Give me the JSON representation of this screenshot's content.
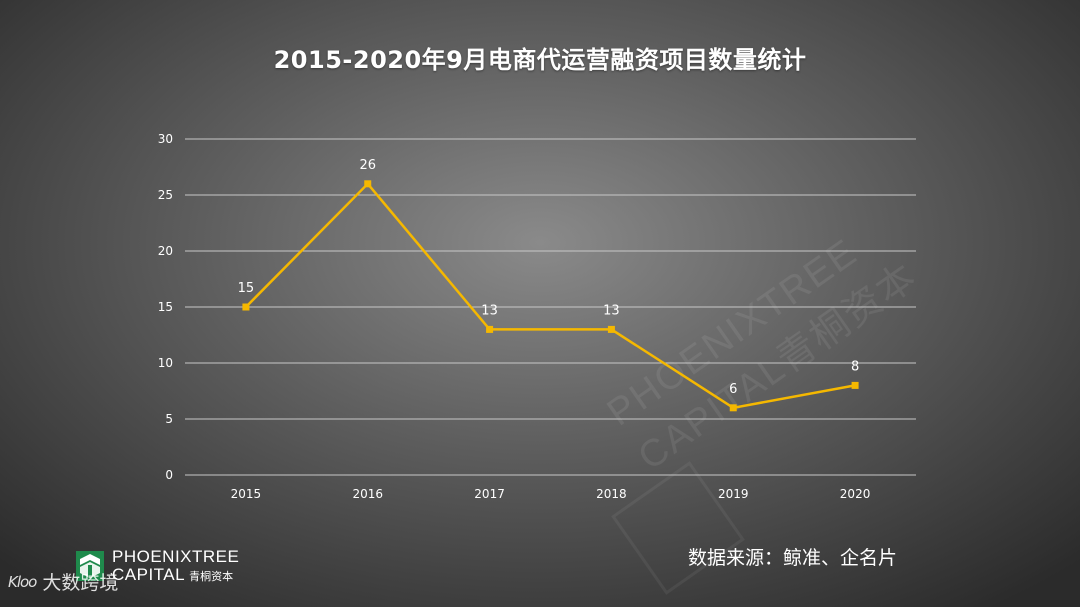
{
  "chart_data": {
    "type": "line",
    "title": "2015-2020年9月电商代运营融资项目数量统计",
    "categories": [
      "2015",
      "2016",
      "2017",
      "2018",
      "2019",
      "2020"
    ],
    "series": [
      {
        "values": [
          15,
          26,
          13,
          13,
          6,
          8
        ],
        "color": "#f5b800"
      }
    ],
    "yticks": [
      0,
      5,
      10,
      15,
      20,
      25,
      30
    ],
    "ylim": [
      0,
      30
    ],
    "grid": true,
    "data_labels": true
  },
  "source": "数据来源：鲸准、企名片",
  "logo": {
    "name_line1": "PHOENIXTREE",
    "name_line2": "CAPITAL",
    "name_cn": "青桐资本"
  },
  "watermark": {
    "text": "大数跨境",
    "mark": "Kloo"
  },
  "diagonal_watermark": {
    "line1": "PHOENIXTREE",
    "line2": "CAPITAL青桐资本"
  },
  "colors": {
    "line": "#f5b800",
    "grid": "#c8c8c8",
    "text": "#ffffff",
    "logo_green": "#1f8a4c"
  }
}
